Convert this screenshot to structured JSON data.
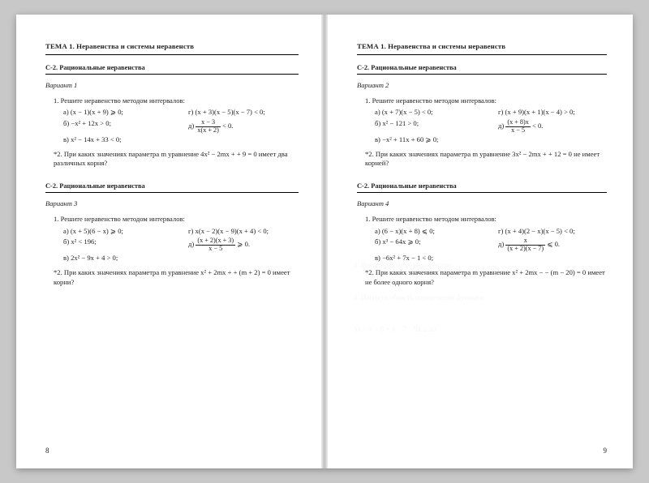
{
  "topic": "ТЕМА 1.  Неравенства и системы неравенств",
  "section": "С-2.  Рациональные неравенства",
  "left": {
    "pageNumber": "8",
    "v1": {
      "title": "Вариант 1",
      "q1": "1. Решите неравенство методом интервалов:",
      "a": "а) (x − 1)(x + 9) ⩾ 0;",
      "g": "г) (x + 3)(x − 5)(x − 7) < 0;",
      "b": "б) −x² + 12x > 0;",
      "d_num": "x − 3",
      "d_den": "x(x + 2)",
      "d_tail": " < 0.",
      "d_pre": "д) ",
      "v": "в) x² − 14x + 33 < 0;",
      "q2": "*2. При каких значениях параметра m уравнение 4x² − 2mx + + 9 = 0 имеет два различных корня?"
    },
    "v3": {
      "title": "Вариант 3",
      "q1": "1. Решите неравенство методом интервалов:",
      "a": "а) (x + 5)(6 − x) ⩾ 0;",
      "g": "г) x(x − 2)(x − 9)(x + 4) < 0;",
      "b": "б) x² < 196;",
      "d_pre": "д) ",
      "d_num": "(x + 2)(x + 3)",
      "d_den": "x − 5",
      "d_tail": " ⩾ 0.",
      "v": "в) 2x² − 9x + 4 > 0;",
      "q2": "*2. При каких значениях параметра m уравнение x² + 2mx + + (m + 2) = 0 имеет корни?"
    }
  },
  "right": {
    "pageNumber": "9",
    "v2": {
      "title": "Вариант 2",
      "q1": "1. Решите неравенство методом интервалов:",
      "a": "а) (x + 7)(x − 5) < 0;",
      "g": "г) (x + 9)(x + 1)(x − 4) > 0;",
      "b": "б) x² − 121 > 0;",
      "d_pre": "д) ",
      "d_num": "(x + 8)x",
      "d_den": "x − 5",
      "d_tail": " < 0.",
      "v": "в) −x² + 11x + 60 ⩾ 0;",
      "q2": "*2. При каких значениях параметра m уравнение 3x² − 2mx + + 12 = 0 не имеет корней?"
    },
    "v4": {
      "title": "Вариант 4",
      "q1": "1. Решите неравенство методом интервалов:",
      "a": "а) (6 − x)(x + 8) ⩽ 0;",
      "g": "г) (x + 4)(2 − x)(x − 5) < 0;",
      "b": "б) x³ − 64x ⩾ 0;",
      "d_pre": "д) ",
      "d_num": "x",
      "d_den": "(x + 2)(x − 7)",
      "d_tail": " ⩽ 0.",
      "v": "в) −6x² + 7x − 1 < 0;",
      "q2": "*2. При каких значениях параметра m уравнение x² + 2mx − − (m − 20) = 0 имеет не более одного корня?"
    }
  }
}
